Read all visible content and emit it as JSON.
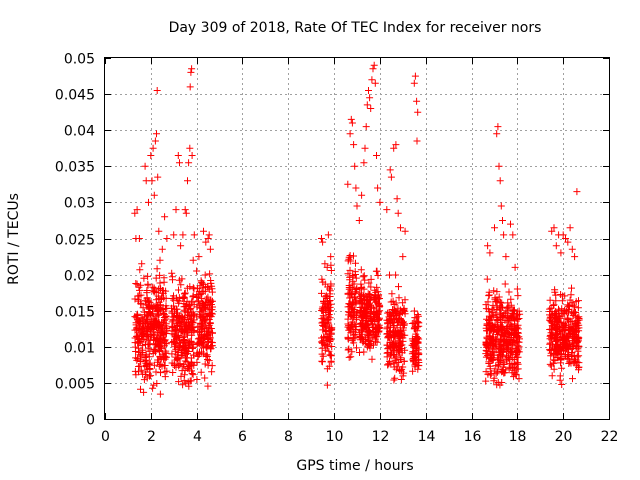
{
  "chart_data": {
    "type": "scatter",
    "title": "Day 309 of 2018, Rate Of TEC Index for receiver nors",
    "xlabel": "GPS time / hours",
    "ylabel": "ROTI / TECUs",
    "xlim": [
      0,
      22
    ],
    "ylim": [
      0,
      0.05
    ],
    "x_ticks": [
      0,
      2,
      4,
      6,
      8,
      10,
      12,
      14,
      16,
      18,
      20,
      22
    ],
    "y_ticks": [
      0,
      0.005,
      0.01,
      0.015,
      0.02,
      0.025,
      0.03,
      0.035,
      0.04,
      0.045,
      0.05
    ],
    "x_tick_labels": [
      "0",
      "2",
      "4",
      "6",
      "8",
      "10",
      "12",
      "14",
      "16",
      "18",
      "20",
      "22"
    ],
    "y_tick_labels": [
      "0",
      "0.005",
      "0.01",
      "0.015",
      "0.02",
      "0.025",
      "0.03",
      "0.035",
      "0.04",
      "0.045",
      "0.05"
    ],
    "grid": true,
    "marker": "+",
    "color": "#ff0000",
    "series": [
      {
        "name": "ROTI",
        "points": [
          [
            1.3,
            0.0285
          ],
          [
            1.35,
            0.025
          ],
          [
            1.4,
            0.029
          ],
          [
            1.5,
            0.025
          ],
          [
            1.6,
            0.0215
          ],
          [
            1.7,
            0.0195
          ],
          [
            1.75,
            0.035
          ],
          [
            1.8,
            0.033
          ],
          [
            1.9,
            0.03
          ],
          [
            2.0,
            0.0365
          ],
          [
            2.05,
            0.033
          ],
          [
            2.1,
            0.0375
          ],
          [
            2.15,
            0.031
          ],
          [
            2.2,
            0.0385
          ],
          [
            2.25,
            0.0395
          ],
          [
            2.28,
            0.0455
          ],
          [
            2.3,
            0.0335
          ],
          [
            2.35,
            0.026
          ],
          [
            2.4,
            0.022
          ],
          [
            2.5,
            0.0235
          ],
          [
            2.6,
            0.028
          ],
          [
            2.7,
            0.025
          ],
          [
            3.0,
            0.0255
          ],
          [
            3.1,
            0.029
          ],
          [
            3.2,
            0.0365
          ],
          [
            3.25,
            0.0355
          ],
          [
            3.3,
            0.024
          ],
          [
            3.4,
            0.0255
          ],
          [
            3.5,
            0.029
          ],
          [
            3.55,
            0.0285
          ],
          [
            3.6,
            0.033
          ],
          [
            3.65,
            0.0355
          ],
          [
            3.7,
            0.0375
          ],
          [
            3.72,
            0.046
          ],
          [
            3.75,
            0.048
          ],
          [
            3.78,
            0.0485
          ],
          [
            3.8,
            0.0365
          ],
          [
            3.85,
            0.022
          ],
          [
            3.9,
            0.0255
          ],
          [
            4.0,
            0.0205
          ],
          [
            4.1,
            0.0225
          ],
          [
            4.3,
            0.026
          ],
          [
            4.4,
            0.0245
          ],
          [
            4.5,
            0.025
          ],
          [
            4.55,
            0.0255
          ],
          [
            4.6,
            0.0235
          ],
          [
            9.45,
            0.025
          ],
          [
            9.5,
            0.0245
          ],
          [
            9.6,
            0.0215
          ],
          [
            9.7,
            0.021
          ],
          [
            9.75,
            0.0255
          ],
          [
            9.8,
            0.018
          ],
          [
            9.85,
            0.0225
          ],
          [
            10.6,
            0.0325
          ],
          [
            10.7,
            0.0395
          ],
          [
            10.75,
            0.0415
          ],
          [
            10.8,
            0.041
          ],
          [
            10.85,
            0.038
          ],
          [
            10.9,
            0.035
          ],
          [
            10.95,
            0.032
          ],
          [
            11.0,
            0.0295
          ],
          [
            11.1,
            0.0275
          ],
          [
            11.2,
            0.031
          ],
          [
            11.3,
            0.0355
          ],
          [
            11.35,
            0.0375
          ],
          [
            11.4,
            0.0405
          ],
          [
            11.45,
            0.0435
          ],
          [
            11.5,
            0.0455
          ],
          [
            11.55,
            0.0445
          ],
          [
            11.6,
            0.043
          ],
          [
            11.65,
            0.047
          ],
          [
            11.7,
            0.0485
          ],
          [
            11.75,
            0.049
          ],
          [
            11.8,
            0.0465
          ],
          [
            11.85,
            0.0365
          ],
          [
            11.9,
            0.032
          ],
          [
            12.0,
            0.03
          ],
          [
            12.3,
            0.029
          ],
          [
            12.45,
            0.0345
          ],
          [
            12.5,
            0.0335
          ],
          [
            12.6,
            0.0375
          ],
          [
            12.7,
            0.038
          ],
          [
            12.75,
            0.0305
          ],
          [
            12.8,
            0.0285
          ],
          [
            12.9,
            0.0265
          ],
          [
            13.0,
            0.0225
          ],
          [
            13.1,
            0.026
          ],
          [
            13.5,
            0.0465
          ],
          [
            13.55,
            0.0475
          ],
          [
            13.6,
            0.044
          ],
          [
            13.62,
            0.0385
          ],
          [
            13.65,
            0.0425
          ],
          [
            16.7,
            0.024
          ],
          [
            16.8,
            0.023
          ],
          [
            17.0,
            0.0265
          ],
          [
            17.1,
            0.0395
          ],
          [
            17.15,
            0.0405
          ],
          [
            17.2,
            0.035
          ],
          [
            17.25,
            0.033
          ],
          [
            17.3,
            0.0295
          ],
          [
            17.35,
            0.0275
          ],
          [
            17.4,
            0.0255
          ],
          [
            17.5,
            0.0225
          ],
          [
            17.7,
            0.027
          ],
          [
            17.8,
            0.0255
          ],
          [
            17.9,
            0.021
          ],
          [
            18.0,
            0.018
          ],
          [
            19.5,
            0.026
          ],
          [
            19.6,
            0.0265
          ],
          [
            19.7,
            0.024
          ],
          [
            19.8,
            0.0255
          ],
          [
            19.9,
            0.023
          ],
          [
            20.0,
            0.0255
          ],
          [
            20.1,
            0.025
          ],
          [
            20.2,
            0.0245
          ],
          [
            20.3,
            0.0265
          ],
          [
            20.4,
            0.0235
          ],
          [
            20.5,
            0.0225
          ],
          [
            20.6,
            0.0315
          ]
        ],
        "bands": [
          {
            "x_range": [
              1.3,
              2.7
            ],
            "y_range": [
              0.002,
              0.02
            ]
          },
          {
            "x_range": [
              2.9,
              3.9
            ],
            "y_range": [
              0.003,
              0.019
            ]
          },
          {
            "x_range": [
              4.0,
              4.7
            ],
            "y_range": [
              0.004,
              0.02
            ]
          },
          {
            "x_range": [
              9.45,
              9.9
            ],
            "y_range": [
              0.004,
              0.02
            ]
          },
          {
            "x_range": [
              10.6,
              11.0
            ],
            "y_range": [
              0.005,
              0.023
            ]
          },
          {
            "x_range": [
              11.1,
              12.0
            ],
            "y_range": [
              0.007,
              0.02
            ]
          },
          {
            "x_range": [
              12.3,
              13.1
            ],
            "y_range": [
              0.003,
              0.018
            ]
          },
          {
            "x_range": [
              13.4,
              13.7
            ],
            "y_range": [
              0.005,
              0.015
            ]
          },
          {
            "x_range": [
              16.6,
              18.1
            ],
            "y_range": [
              0.003,
              0.018
            ]
          },
          {
            "x_range": [
              19.4,
              20.7
            ],
            "y_range": [
              0.004,
              0.017
            ]
          }
        ]
      }
    ]
  }
}
